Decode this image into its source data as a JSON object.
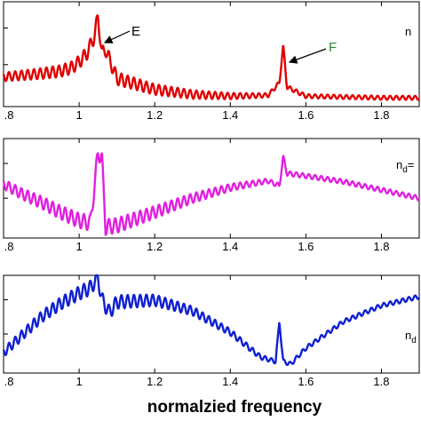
{
  "chart_data": {
    "type": "line",
    "xlabel": "normalzied frequency",
    "xlim": [
      0.8,
      1.9
    ],
    "xticks": [
      ".8",
      "1",
      "1.2",
      "1.4",
      "1.6",
      "1.8"
    ],
    "xtick_values": [
      0.8,
      1.0,
      1.2,
      1.4,
      1.6,
      1.8
    ],
    "panels": [
      {
        "series_color": "#e00000",
        "corner_label": "n",
        "corner_sub": "",
        "corner_suffix": "",
        "annotations": [
          {
            "text": "E",
            "color": "#000000",
            "x": 1.05
          },
          {
            "text": "F",
            "color": "#2e8b2e",
            "x": 1.54
          }
        ],
        "x": [
          0.8,
          0.85,
          0.9,
          0.95,
          0.98,
          1.0,
          1.02,
          1.04,
          1.05,
          1.06,
          1.07,
          1.1,
          1.2,
          1.3,
          1.4,
          1.5,
          1.53,
          1.54,
          1.55,
          1.6,
          1.7,
          1.8,
          1.9
        ],
        "y": [
          0.27,
          0.29,
          0.31,
          0.34,
          0.38,
          0.45,
          0.55,
          0.75,
          1.0,
          0.55,
          0.6,
          0.25,
          0.12,
          0.06,
          0.04,
          0.05,
          0.2,
          0.65,
          0.15,
          0.04,
          0.03,
          0.02,
          0.02
        ],
        "oscillation": 0.06
      },
      {
        "series_color": "#e020e0",
        "corner_label": "n",
        "corner_sub": "d",
        "corner_suffix": "=",
        "annotations": [],
        "x": [
          0.8,
          0.85,
          0.9,
          0.95,
          1.0,
          1.03,
          1.05,
          1.06,
          1.07,
          1.1,
          1.2,
          1.3,
          1.4,
          1.5,
          1.53,
          1.54,
          1.55,
          1.6,
          1.7,
          1.8,
          1.9
        ],
        "y": [
          0.62,
          0.5,
          0.4,
          0.28,
          0.18,
          0.15,
          1.0,
          0.95,
          0.1,
          0.12,
          0.28,
          0.45,
          0.58,
          0.66,
          0.6,
          0.95,
          0.75,
          0.72,
          0.65,
          0.55,
          0.45
        ],
        "oscillation": 0.07
      },
      {
        "series_color": "#1020d0",
        "corner_label": "n",
        "corner_sub": "d",
        "corner_suffix": "",
        "annotations": [],
        "x": [
          0.8,
          0.85,
          0.9,
          0.95,
          1.0,
          1.03,
          1.05,
          1.06,
          1.08,
          1.1,
          1.2,
          1.3,
          1.4,
          1.48,
          1.52,
          1.53,
          1.54,
          1.56,
          1.6,
          1.7,
          1.8,
          1.9
        ],
        "y": [
          0.15,
          0.35,
          0.55,
          0.7,
          0.82,
          0.88,
          1.0,
          0.75,
          0.6,
          0.72,
          0.74,
          0.62,
          0.38,
          0.1,
          0.05,
          0.5,
          0.05,
          0.02,
          0.2,
          0.5,
          0.68,
          0.78
        ],
        "oscillation": 0.06
      }
    ]
  }
}
